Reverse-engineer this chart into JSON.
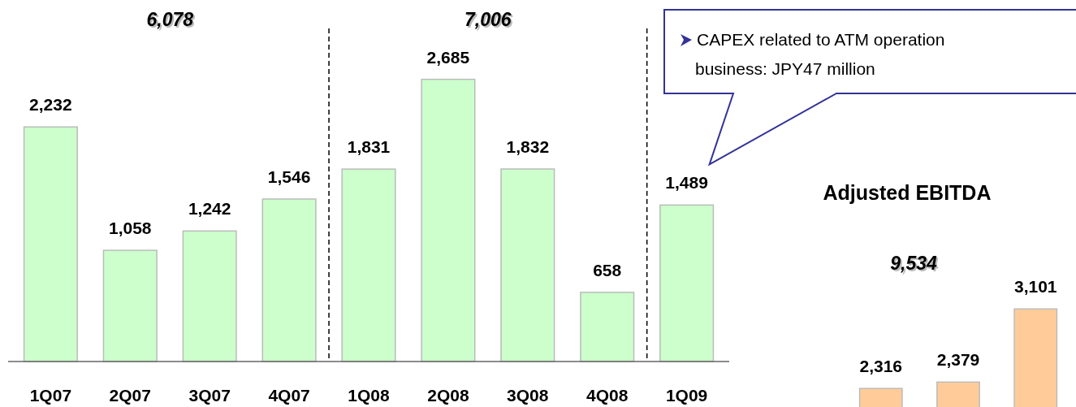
{
  "chart_data": [
    {
      "type": "bar",
      "categories": [
        "1Q07",
        "2Q07",
        "3Q07",
        "4Q07",
        "1Q08",
        "2Q08",
        "3Q08",
        "4Q08",
        "1Q09"
      ],
      "values": [
        2232,
        1058,
        1242,
        1546,
        1831,
        2685,
        1832,
        658,
        1489
      ],
      "color": "#ccffcc",
      "value_labels": [
        "2,232",
        "1,058",
        "1,242",
        "1,546",
        "1,831",
        "2,685",
        "1,832",
        "658",
        "1,489"
      ],
      "annotations": [
        "6,078",
        "7,006",
        "CAPEX related to ATM operation business: JPY47 million"
      ]
    },
    {
      "type": "bar",
      "title": "Adjusted EBITDA",
      "categories": [
        null,
        null,
        null
      ],
      "values": [
        2316,
        2379,
        3101
      ],
      "color": "#ffcc99",
      "value_labels": [
        "2,316",
        "2,379",
        "3,101"
      ],
      "annotations": [
        "9,534"
      ]
    }
  ]
}
